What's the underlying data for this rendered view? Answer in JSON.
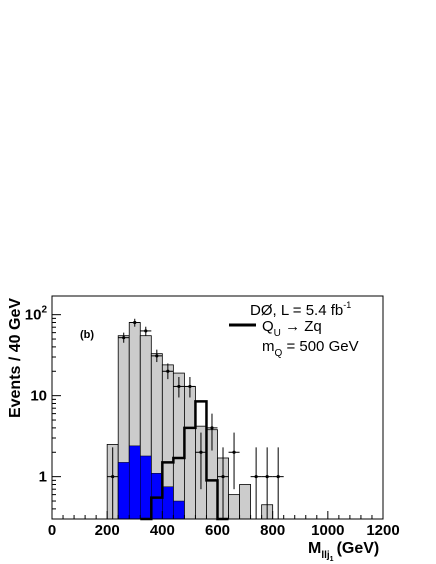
{
  "chart_data": {
    "type": "bar",
    "panel_label": "(b)",
    "xlabel_main": "M",
    "xlabel_sub": "llj",
    "xlabel_sub2": "1",
    "xlabel_unit": "(GeV)",
    "ylabel": "Events / 40 GeV",
    "xlim": [
      0,
      1200
    ],
    "ylim": [
      0.3,
      170
    ],
    "yscale": "log",
    "bin_width": 40,
    "x_ticks": [
      "0",
      "200",
      "400",
      "600",
      "800",
      "1000",
      "1200"
    ],
    "y_ticks": [
      {
        "value": 1,
        "base": "1",
        "exp": ""
      },
      {
        "value": 10,
        "base": "10",
        "exp": ""
      },
      {
        "value": 100,
        "base": "10",
        "exp": "2"
      }
    ],
    "legend": {
      "experiment": "DØ, L = 5.4 fb",
      "experiment_exp": "-1",
      "signal_main": "Q",
      "signal_sub": "U",
      "signal_tail": " → Zq",
      "mass_main": "m",
      "mass_sub": "Q",
      "mass_tail": " = 500 GeV",
      "placement": "top-right"
    },
    "colors": {
      "background": "#cccccc",
      "component": "#0000ff",
      "signal": "#000000",
      "data": "#000000"
    },
    "series": [
      {
        "role": "total-background",
        "bins": [
          {
            "x0": 200,
            "y": 2.5
          },
          {
            "x0": 240,
            "y": 55
          },
          {
            "x0": 280,
            "y": 80
          },
          {
            "x0": 320,
            "y": 55
          },
          {
            "x0": 360,
            "y": 33
          },
          {
            "x0": 400,
            "y": 24
          },
          {
            "x0": 440,
            "y": 19
          },
          {
            "x0": 480,
            "y": 13
          },
          {
            "x0": 520,
            "y": 4.2
          },
          {
            "x0": 560,
            "y": 3.8
          },
          {
            "x0": 600,
            "y": 1.7
          },
          {
            "x0": 640,
            "y": 0.6
          },
          {
            "x0": 680,
            "y": 0.8
          },
          {
            "x0": 760,
            "y": 0.45
          }
        ]
      },
      {
        "role": "background-component",
        "bins": [
          {
            "x0": 240,
            "y": 1.5
          },
          {
            "x0": 280,
            "y": 2.4
          },
          {
            "x0": 320,
            "y": 1.8
          },
          {
            "x0": 360,
            "y": 1.1
          },
          {
            "x0": 400,
            "y": 0.75
          },
          {
            "x0": 440,
            "y": 0.5
          }
        ]
      },
      {
        "role": "signal",
        "name": "Q_U → Zq",
        "bins": [
          {
            "x0": 320,
            "y": 0.3
          },
          {
            "x0": 360,
            "y": 0.55
          },
          {
            "x0": 400,
            "y": 1.5
          },
          {
            "x0": 440,
            "y": 1.7
          },
          {
            "x0": 480,
            "y": 4.0
          },
          {
            "x0": 520,
            "y": 8.5
          },
          {
            "x0": 560,
            "y": 0.9
          },
          {
            "x0": 600,
            "y": 0.3
          }
        ]
      },
      {
        "role": "data",
        "points": [
          {
            "x": 220,
            "y": 1.0,
            "lo": 0.3,
            "hi": 2.3
          },
          {
            "x": 260,
            "y": 52,
            "lo": 45,
            "hi": 60
          },
          {
            "x": 300,
            "y": 80,
            "lo": 71,
            "hi": 89
          },
          {
            "x": 340,
            "y": 63,
            "lo": 55,
            "hi": 71
          },
          {
            "x": 380,
            "y": 31,
            "lo": 26,
            "hi": 37
          },
          {
            "x": 420,
            "y": 20,
            "lo": 16,
            "hi": 25
          },
          {
            "x": 460,
            "y": 13,
            "lo": 9.5,
            "hi": 17
          },
          {
            "x": 500,
            "y": 13,
            "lo": 9.5,
            "hi": 17
          },
          {
            "x": 540,
            "y": 2.0,
            "lo": 0.7,
            "hi": 3.5
          },
          {
            "x": 580,
            "y": 4.0,
            "lo": 2.1,
            "hi": 6.0
          },
          {
            "x": 620,
            "y": 1.0,
            "lo": 0.3,
            "hi": 2.3
          },
          {
            "x": 660,
            "y": 2.0,
            "lo": 0.7,
            "hi": 3.5
          },
          {
            "x": 740,
            "y": 1.0,
            "lo": 0.3,
            "hi": 2.3
          },
          {
            "x": 780,
            "y": 1.0,
            "lo": 0.3,
            "hi": 2.3
          },
          {
            "x": 820,
            "y": 1.0,
            "lo": 0.3,
            "hi": 2.3
          }
        ]
      }
    ]
  }
}
